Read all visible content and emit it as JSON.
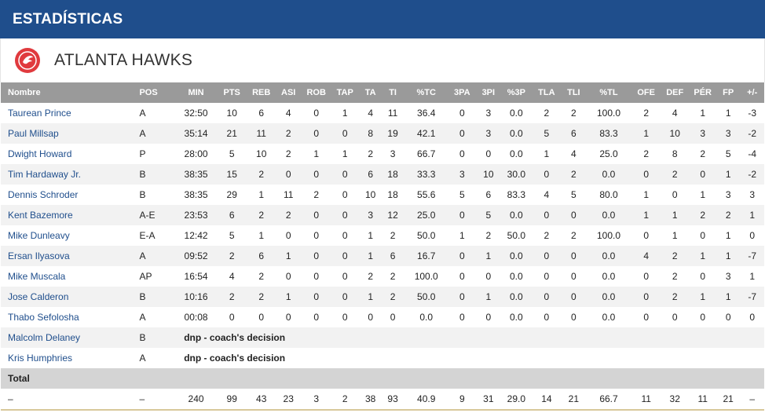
{
  "header": {
    "title": "ESTADÍSTICAS"
  },
  "team": {
    "name": "ATLANTA HAWKS",
    "logo_icon": "hawks-logo-icon"
  },
  "columns": [
    "Nombre",
    "POS",
    "MIN",
    "PTS",
    "REB",
    "ASI",
    "ROB",
    "TAP",
    "TA",
    "TI",
    "%TC",
    "3PA",
    "3PI",
    "%3P",
    "TLA",
    "TLI",
    "%TL",
    "OFE",
    "DEF",
    "PÉR",
    "FP",
    "+/-"
  ],
  "players": [
    {
      "name": "Taurean Prince",
      "pos": "A",
      "stats": [
        "32:50",
        "10",
        "6",
        "4",
        "0",
        "1",
        "4",
        "11",
        "36.4",
        "0",
        "3",
        "0.0",
        "2",
        "2",
        "100.0",
        "2",
        "4",
        "1",
        "1",
        "-3"
      ]
    },
    {
      "name": "Paul Millsap",
      "pos": "A",
      "stats": [
        "35:14",
        "21",
        "11",
        "2",
        "0",
        "0",
        "8",
        "19",
        "42.1",
        "0",
        "3",
        "0.0",
        "5",
        "6",
        "83.3",
        "1",
        "10",
        "3",
        "3",
        "-2"
      ]
    },
    {
      "name": "Dwight Howard",
      "pos": "P",
      "stats": [
        "28:00",
        "5",
        "10",
        "2",
        "1",
        "1",
        "2",
        "3",
        "66.7",
        "0",
        "0",
        "0.0",
        "1",
        "4",
        "25.0",
        "2",
        "8",
        "2",
        "5",
        "-4"
      ]
    },
    {
      "name": "Tim Hardaway Jr.",
      "pos": "B",
      "stats": [
        "38:35",
        "15",
        "2",
        "0",
        "0",
        "0",
        "6",
        "18",
        "33.3",
        "3",
        "10",
        "30.0",
        "0",
        "2",
        "0.0",
        "0",
        "2",
        "0",
        "1",
        "-2"
      ]
    },
    {
      "name": "Dennis Schroder",
      "pos": "B",
      "stats": [
        "38:35",
        "29",
        "1",
        "11",
        "2",
        "0",
        "10",
        "18",
        "55.6",
        "5",
        "6",
        "83.3",
        "4",
        "5",
        "80.0",
        "1",
        "0",
        "1",
        "3",
        "3"
      ]
    },
    {
      "name": "Kent Bazemore",
      "pos": "A-E",
      "stats": [
        "23:53",
        "6",
        "2",
        "2",
        "0",
        "0",
        "3",
        "12",
        "25.0",
        "0",
        "5",
        "0.0",
        "0",
        "0",
        "0.0",
        "1",
        "1",
        "2",
        "2",
        "1"
      ]
    },
    {
      "name": "Mike Dunleavy",
      "pos": "E-A",
      "stats": [
        "12:42",
        "5",
        "1",
        "0",
        "0",
        "0",
        "1",
        "2",
        "50.0",
        "1",
        "2",
        "50.0",
        "2",
        "2",
        "100.0",
        "0",
        "1",
        "0",
        "1",
        "0"
      ]
    },
    {
      "name": "Ersan Ilyasova",
      "pos": "A",
      "stats": [
        "09:52",
        "2",
        "6",
        "1",
        "0",
        "0",
        "1",
        "6",
        "16.7",
        "0",
        "1",
        "0.0",
        "0",
        "0",
        "0.0",
        "4",
        "2",
        "1",
        "1",
        "-7"
      ]
    },
    {
      "name": "Mike Muscala",
      "pos": "AP",
      "stats": [
        "16:54",
        "4",
        "2",
        "0",
        "0",
        "0",
        "2",
        "2",
        "100.0",
        "0",
        "0",
        "0.0",
        "0",
        "0",
        "0.0",
        "0",
        "2",
        "0",
        "3",
        "1"
      ]
    },
    {
      "name": "Jose Calderon",
      "pos": "B",
      "stats": [
        "10:16",
        "2",
        "2",
        "1",
        "0",
        "0",
        "1",
        "2",
        "50.0",
        "0",
        "1",
        "0.0",
        "0",
        "0",
        "0.0",
        "0",
        "2",
        "1",
        "1",
        "-7"
      ]
    },
    {
      "name": "Thabo Sefolosha",
      "pos": "A",
      "stats": [
        "00:08",
        "0",
        "0",
        "0",
        "0",
        "0",
        "0",
        "0",
        "0.0",
        "0",
        "0",
        "0.0",
        "0",
        "0",
        "0.0",
        "0",
        "0",
        "0",
        "0",
        "0"
      ]
    }
  ],
  "dnp_players": [
    {
      "name": "Malcolm Delaney",
      "pos": "B",
      "note": "dnp - coach's decision"
    },
    {
      "name": "Kris Humphries",
      "pos": "A",
      "note": "dnp - coach's decision"
    }
  ],
  "totals": {
    "label": "Total",
    "name": "–",
    "pos": "–",
    "stats": [
      "240",
      "99",
      "43",
      "23",
      "3",
      "2",
      "38",
      "93",
      "40.9",
      "9",
      "31",
      "29.0",
      "14",
      "21",
      "66.7",
      "11",
      "32",
      "11",
      "21",
      "–"
    ]
  },
  "colors": {
    "header_bg": "#1f4e8c",
    "table_header_bg": "#9a9a9a",
    "link": "#1f4e8c",
    "logo_red": "#e03a3e"
  }
}
